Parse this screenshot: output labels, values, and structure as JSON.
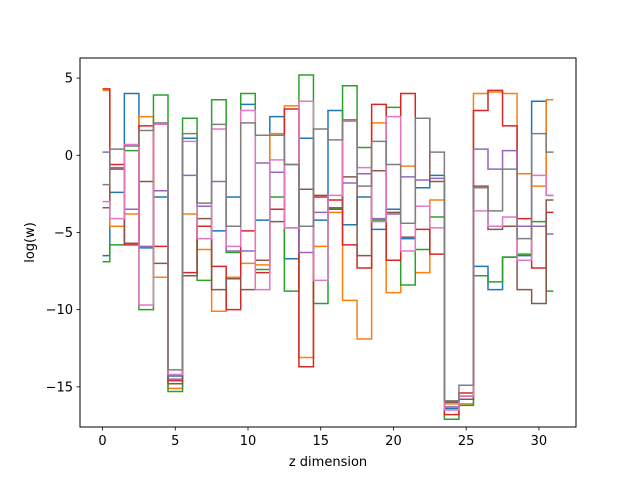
{
  "chart_data": {
    "type": "line",
    "drawstyle": "steps-mid",
    "xlabel": "z dimension",
    "ylabel": "log(w)",
    "xlim": [
      -1.55,
      32.55
    ],
    "ylim": [
      -17.6,
      6.3
    ],
    "xticks": [
      0,
      5,
      10,
      15,
      20,
      25,
      30
    ],
    "yticks": [
      -15,
      -10,
      -5,
      0,
      5
    ],
    "grid": false,
    "x": [
      0,
      1,
      2,
      3,
      4,
      5,
      6,
      7,
      8,
      9,
      10,
      11,
      12,
      13,
      14,
      15,
      16,
      17,
      18,
      19,
      20,
      21,
      22,
      23,
      24,
      25,
      26,
      27,
      28,
      29,
      30,
      31
    ],
    "series": [
      {
        "color": "#1f77b4",
        "values": [
          -6.5,
          -2.4,
          4.0,
          -6.0,
          -2.7,
          -14.3,
          1.1,
          -3.3,
          -4.9,
          -2.7,
          3.3,
          -4.2,
          2.5,
          -6.7,
          1.1,
          -4.2,
          2.9,
          -4.5,
          -2.7,
          -4.8,
          -3.5,
          -5.4,
          -2.1,
          -1.3,
          -16.4,
          -15.6,
          -7.2,
          -8.7,
          -6.6,
          -6.5,
          3.5,
          -2.6
        ]
      },
      {
        "color": "#ff7f0e",
        "values": [
          4.2,
          -4.6,
          -3.8,
          2.5,
          -7.9,
          -15.1,
          -3.8,
          -6.1,
          -10.1,
          -7.9,
          -7.0,
          -7.1,
          1.4,
          3.2,
          -13.1,
          -5.9,
          -3.7,
          -9.4,
          -11.9,
          2.1,
          -8.9,
          -0.7,
          -7.6,
          -2.9,
          -16.1,
          -16.1,
          4.0,
          4.1,
          4.0,
          -1.2,
          -2.0,
          3.6
        ]
      },
      {
        "color": "#2ca02c",
        "values": [
          -6.9,
          -5.8,
          0.3,
          -10.0,
          3.9,
          -15.3,
          2.4,
          -8.1,
          3.6,
          -6.3,
          4.0,
          -7.4,
          -2.7,
          -8.8,
          5.2,
          -9.6,
          -3.4,
          4.5,
          0.5,
          -4.2,
          3.1,
          -8.4,
          -6.1,
          -4.0,
          -17.1,
          -16.2,
          -7.8,
          -8.2,
          -6.6,
          -6.4,
          -4.3,
          -8.8
        ]
      },
      {
        "color": "#d62728",
        "values": [
          4.3,
          -0.6,
          -5.8,
          1.9,
          -5.9,
          -14.6,
          -7.6,
          -4.6,
          -7.2,
          -10.0,
          -4.9,
          -7.6,
          -3.5,
          3.0,
          -13.7,
          -2.7,
          -2.9,
          -5.8,
          -7.3,
          3.3,
          -6.8,
          4.0,
          -4.8,
          -6.4,
          -16.8,
          -15.4,
          2.9,
          4.2,
          1.9,
          -4.1,
          -7.3,
          -3.7
        ]
      },
      {
        "color": "#9467bd",
        "values": [
          0.2,
          -0.8,
          -3.5,
          -5.9,
          -2.3,
          -14.5,
          -1.3,
          -3.3,
          -1.7,
          -6.2,
          -6.2,
          -0.5,
          -1.1,
          -4.7,
          -6.3,
          -3.7,
          -3.5,
          -1.8,
          -1.2,
          -4.1,
          -3.8,
          -1.4,
          -1.6,
          -1.5,
          -16.3,
          -15.6,
          0.4,
          -0.9,
          0.3,
          -4.6,
          -4.6,
          -5.1
        ]
      },
      {
        "color": "#8c564b",
        "values": [
          -3.4,
          -0.9,
          -5.7,
          -1.7,
          -7.0,
          -14.8,
          -7.8,
          -4.1,
          -8.7,
          -8.0,
          -8.7,
          -6.8,
          -4.3,
          -0.6,
          -2.2,
          -2.6,
          -3.5,
          -1.4,
          -6.5,
          -1.0,
          -3.7,
          -5.3,
          2.4,
          -1.7,
          -16.0,
          -15.8,
          -2.0,
          -4.8,
          -4.6,
          -8.7,
          -9.6,
          -2.9
        ]
      },
      {
        "color": "#e377c2",
        "values": [
          -3.0,
          -4.1,
          0.7,
          -9.7,
          2.0,
          -14.2,
          0.9,
          -5.4,
          1.7,
          -5.9,
          2.9,
          -8.7,
          -0.3,
          -4.7,
          3.5,
          -8.1,
          -2.6,
          2.2,
          -0.8,
          -4.3,
          2.5,
          -6.2,
          -3.3,
          -4.7,
          -16.5,
          -15.6,
          -3.6,
          -4.6,
          -4.0,
          -6.8,
          -1.3,
          -2.6
        ]
      },
      {
        "color": "#7f7f7f",
        "values": [
          -1.9,
          0.4,
          0.6,
          1.6,
          2.1,
          -13.9,
          1.4,
          -3.1,
          2.0,
          -4.6,
          2.1,
          1.3,
          1.3,
          -0.6,
          -4.6,
          1.7,
          1.0,
          2.3,
          -2.0,
          0.9,
          -0.6,
          -4.4,
          2.4,
          0.2,
          -15.9,
          -14.9,
          -2.1,
          -3.6,
          -0.9,
          -5.4,
          1.4,
          0.2
        ]
      }
    ]
  }
}
